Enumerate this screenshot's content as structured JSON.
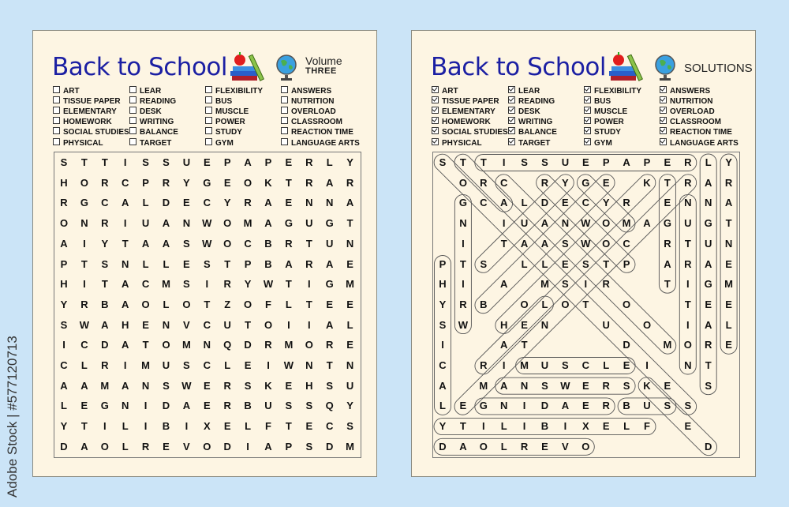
{
  "title": "Back to School",
  "volume": {
    "label": "Volume",
    "number": "THREE"
  },
  "solutions_label": "SOLUTIONS",
  "stock_credit": "Adobe Stock | #577120713",
  "colors": {
    "title": "#1b1fa3",
    "panel": "#fdf5e3",
    "background": "#cbe4f7"
  },
  "icons": [
    "books-apple-icon",
    "ruler-icon",
    "globe-icon"
  ],
  "word_list": [
    [
      "ART",
      "TISSUE PAPER",
      "ELEMENTARY",
      "HOMEWORK",
      "SOCIAL STUDIES",
      "PHYSICAL"
    ],
    [
      "LEAR",
      "READING",
      "DESK",
      "WRITING",
      "BALANCE",
      "TARGET"
    ],
    [
      "FLEXIBILITY",
      "BUS",
      "MUSCLE",
      "POWER",
      "STUDY",
      "GYM"
    ],
    [
      "ANSWERS",
      "NUTRITION",
      "OVERLOAD",
      "CLASSROOM",
      "REACTION TIME",
      "LANGUAGE ARTS"
    ]
  ],
  "grid": [
    "STTISSUEPAPERLY",
    "HORCPRYGEOKTRAR",
    "RGCALDECYRAENNA",
    "ONRIUANWOMAGUGT",
    "AIYTAASWOCBRTUN",
    "PTSNLLESTPBARAE",
    "HITACMSIRYWTIGM",
    "YRBAOLOTZOFLTEE",
    "SWAHENVCUTOIIAL",
    "ICDATOMNQDRMORE",
    "CLRIMUSCLEIWNTN",
    "AAMANSWERSKEHSU",
    "LEGNIDAERBUSSQY",
    "YTILIBIXELFTECS",
    "DAOLREVODIAPSDM"
  ],
  "solutions": [
    {
      "word": "TISSUE PAPER",
      "start": [
        1,
        3
      ],
      "end": [
        1,
        13
      ]
    },
    {
      "word": "LANGUAGE ARTS",
      "start": [
        1,
        14
      ],
      "end": [
        12,
        14
      ]
    },
    {
      "word": "ELEMENTARY",
      "start": [
        10,
        15
      ],
      "end": [
        1,
        15
      ]
    },
    {
      "word": "TARGET",
      "start": [
        7,
        12
      ],
      "end": [
        2,
        12
      ]
    },
    {
      "word": "NUTRITION",
      "start": [
        3,
        13
      ],
      "end": [
        11,
        13
      ]
    },
    {
      "word": "PHYSICAL",
      "start": [
        6,
        1
      ],
      "end": [
        13,
        1
      ]
    },
    {
      "word": "WRITING",
      "start": [
        9,
        2
      ],
      "end": [
        3,
        2
      ]
    },
    {
      "word": "MUSCLE",
      "start": [
        11,
        5
      ],
      "end": [
        11,
        10
      ]
    },
    {
      "word": "ANSWERS",
      "start": [
        12,
        4
      ],
      "end": [
        12,
        10
      ]
    },
    {
      "word": "READING",
      "start": [
        13,
        9
      ],
      "end": [
        13,
        3
      ]
    },
    {
      "word": "BUS",
      "start": [
        13,
        10
      ],
      "end": [
        13,
        12
      ]
    },
    {
      "word": "FLEXIBILITY",
      "start": [
        14,
        11
      ],
      "end": [
        14,
        1
      ]
    },
    {
      "word": "OVERLOAD",
      "start": [
        15,
        8
      ],
      "end": [
        15,
        1
      ]
    },
    {
      "word": "DESK",
      "start": [
        15,
        14
      ],
      "end": [
        12,
        11
      ]
    },
    {
      "word": "SOCIAL STUDIES",
      "start": [
        1,
        1
      ],
      "end": [
        13,
        13
      ]
    },
    {
      "word": "ART",
      "start": [
        3,
        4
      ],
      "end": [
        1,
        2
      ]
    },
    {
      "word": "CLASSROOM",
      "start": [
        2,
        4
      ],
      "end": [
        10,
        12
      ]
    },
    {
      "word": "REACTION TIME",
      "start": [
        2,
        13
      ],
      "end": [
        13,
        2
      ]
    },
    {
      "word": "BALANCE",
      "start": [
        8,
        3
      ],
      "end": [
        2,
        9
      ]
    },
    {
      "word": "STUDY",
      "start": [
        6,
        3
      ],
      "end": [
        2,
        7
      ]
    },
    {
      "word": "HOMEWORK",
      "start": [
        9,
        4
      ],
      "end": [
        2,
        11
      ]
    },
    {
      "word": "LEAR",
      "start": [
        8,
        6
      ],
      "end": [
        11,
        3
      ]
    },
    {
      "word": "GYM",
      "start": [
        2,
        8
      ],
      "end": [
        4,
        10
      ]
    },
    {
      "word": "POWER",
      "start": [
        6,
        10
      ],
      "end": [
        2,
        6
      ]
    }
  ]
}
